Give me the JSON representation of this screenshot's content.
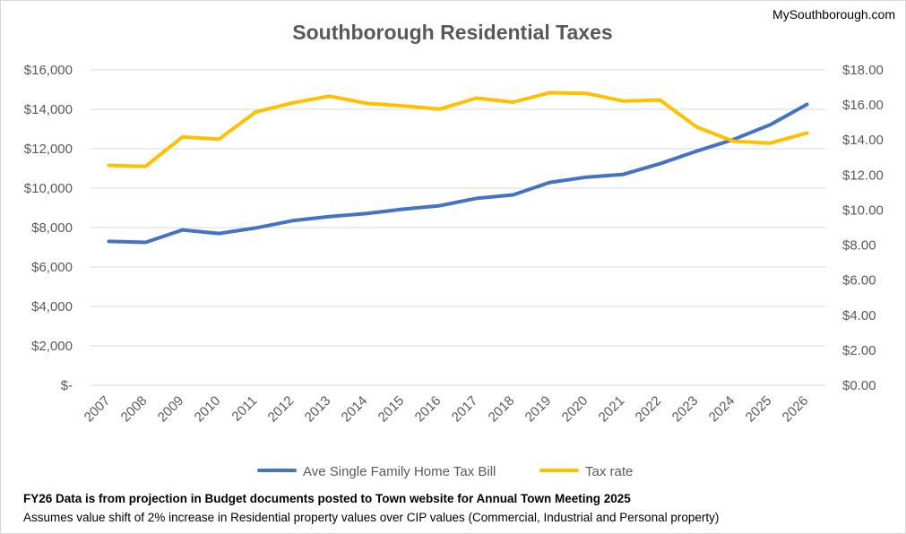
{
  "chart_data": {
    "type": "line",
    "title": "Southborough Residential Taxes",
    "x": [
      "2007",
      "2008",
      "2009",
      "2010",
      "2011",
      "2012",
      "2013",
      "2014",
      "2015",
      "2016",
      "2017",
      "2018",
      "2019",
      "2020",
      "2021",
      "2022",
      "2023",
      "2024",
      "2025",
      "2026"
    ],
    "y_left": {
      "ticks": [
        "$-",
        "$2,000",
        "$4,000",
        "$6,000",
        "$8,000",
        "$10,000",
        "$12,000",
        "$14,000",
        "$16,000"
      ],
      "ylim": [
        0,
        16000
      ]
    },
    "y_right": {
      "ticks": [
        "$0.00",
        "$2.00",
        "$4.00",
        "$6.00",
        "$8.00",
        "$10.00",
        "$12.00",
        "$14.00",
        "$16.00",
        "$18.00"
      ],
      "ylim": [
        0,
        18
      ]
    },
    "series": [
      {
        "name": "Ave Single Family Home Tax Bill",
        "axis": "left",
        "color": "#4472c4",
        "values": [
          7300,
          7250,
          7880,
          7700,
          7980,
          8350,
          8560,
          8710,
          8930,
          9110,
          9480,
          9660,
          10290,
          10560,
          10700,
          11240,
          11880,
          12470,
          13220,
          14250
        ]
      },
      {
        "name": "Tax rate",
        "axis": "right",
        "color": "#ffc000",
        "values": [
          12.55,
          12.5,
          14.17,
          14.05,
          15.6,
          16.12,
          16.5,
          16.1,
          15.95,
          15.76,
          16.39,
          16.16,
          16.7,
          16.66,
          16.22,
          16.28,
          14.74,
          13.93,
          13.82,
          14.4
        ]
      }
    ],
    "grid": true,
    "legend": "bottom"
  },
  "watermark": "MySouthborough.com",
  "notes": {
    "line1": "FY26 Data is from projection in Budget documents posted to Town website for Annual Town Meeting 2025",
    "line2": "Assumes value shift of 2% increase in Residential property values over CIP values (Commercial, Industrial and Personal property)"
  }
}
